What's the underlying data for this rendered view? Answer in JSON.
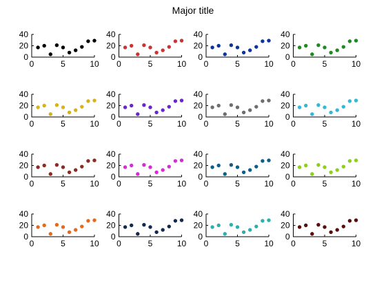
{
  "figure": {
    "title": "Major title"
  },
  "chart_data": [
    {
      "type": "scatter",
      "color": "#000000",
      "x": [
        1,
        2,
        3,
        4,
        5,
        6,
        7,
        8,
        9,
        10
      ],
      "y": [
        17,
        20,
        5,
        21,
        17,
        8,
        12,
        18,
        28,
        29
      ],
      "xlim": [
        0,
        10
      ],
      "ylim": [
        0,
        40
      ],
      "xticks": [
        "0",
        "5",
        "10"
      ],
      "yticks": [
        "0",
        "20",
        "40"
      ]
    },
    {
      "type": "scatter",
      "color": "#cc3333",
      "x": [
        1,
        2,
        3,
        4,
        5,
        6,
        7,
        8,
        9,
        10
      ],
      "y": [
        17,
        20,
        5,
        21,
        17,
        8,
        12,
        18,
        28,
        29
      ],
      "xlim": [
        0,
        10
      ],
      "ylim": [
        0,
        40
      ],
      "xticks": [
        "0",
        "5",
        "10"
      ],
      "yticks": [
        "0",
        "20",
        "40"
      ]
    },
    {
      "type": "scatter",
      "color": "#0b3599",
      "x": [
        1,
        2,
        3,
        4,
        5,
        6,
        7,
        8,
        9,
        10
      ],
      "y": [
        17,
        20,
        5,
        21,
        17,
        8,
        12,
        18,
        28,
        29
      ],
      "xlim": [
        0,
        10
      ],
      "ylim": [
        0,
        40
      ],
      "xticks": [
        "0",
        "5",
        "10"
      ],
      "yticks": [
        "0",
        "20",
        "40"
      ]
    },
    {
      "type": "scatter",
      "color": "#1f8a1f",
      "x": [
        1,
        2,
        3,
        4,
        5,
        6,
        7,
        8,
        9,
        10
      ],
      "y": [
        17,
        20,
        5,
        21,
        17,
        8,
        12,
        18,
        28,
        29
      ],
      "xlim": [
        0,
        10
      ],
      "ylim": [
        0,
        40
      ],
      "xticks": [
        "0",
        "5",
        "10"
      ],
      "yticks": [
        "0",
        "20",
        "40"
      ]
    },
    {
      "type": "scatter",
      "color": "#d6b21b",
      "x": [
        1,
        2,
        3,
        4,
        5,
        6,
        7,
        8,
        9,
        10
      ],
      "y": [
        17,
        20,
        5,
        21,
        17,
        8,
        12,
        18,
        28,
        29
      ],
      "xlim": [
        0,
        10
      ],
      "ylim": [
        0,
        40
      ],
      "xticks": [
        "0",
        "5",
        "10"
      ],
      "yticks": [
        "0",
        "20",
        "40"
      ]
    },
    {
      "type": "scatter",
      "color": "#6a26cc",
      "x": [
        1,
        2,
        3,
        4,
        5,
        6,
        7,
        8,
        9,
        10
      ],
      "y": [
        17,
        20,
        5,
        21,
        17,
        8,
        12,
        18,
        28,
        29
      ],
      "xlim": [
        0,
        10
      ],
      "ylim": [
        0,
        40
      ],
      "xticks": [
        "0",
        "5",
        "10"
      ],
      "yticks": [
        "0",
        "20",
        "40"
      ]
    },
    {
      "type": "scatter",
      "color": "#6e6e6e",
      "x": [
        1,
        2,
        3,
        4,
        5,
        6,
        7,
        8,
        9,
        10
      ],
      "y": [
        17,
        20,
        5,
        21,
        17,
        8,
        12,
        18,
        28,
        29
      ],
      "xlim": [
        0,
        10
      ],
      "ylim": [
        0,
        40
      ],
      "xticks": [
        "0",
        "5",
        "10"
      ],
      "yticks": [
        "0",
        "20",
        "40"
      ]
    },
    {
      "type": "scatter",
      "color": "#35b7d6",
      "x": [
        1,
        2,
        3,
        4,
        5,
        6,
        7,
        8,
        9,
        10
      ],
      "y": [
        17,
        20,
        5,
        21,
        17,
        8,
        12,
        18,
        28,
        29
      ],
      "xlim": [
        0,
        10
      ],
      "ylim": [
        0,
        40
      ],
      "xticks": [
        "0",
        "5",
        "10"
      ],
      "yticks": [
        "0",
        "20",
        "40"
      ]
    },
    {
      "type": "scatter",
      "color": "#8b2b23",
      "x": [
        1,
        2,
        3,
        4,
        5,
        6,
        7,
        8,
        9,
        10
      ],
      "y": [
        17,
        20,
        5,
        21,
        17,
        8,
        12,
        18,
        28,
        29
      ],
      "xlim": [
        0,
        10
      ],
      "ylim": [
        0,
        40
      ],
      "xticks": [
        "0",
        "5",
        "10"
      ],
      "yticks": [
        "0",
        "20",
        "40"
      ]
    },
    {
      "type": "scatter",
      "color": "#d42dd4",
      "x": [
        1,
        2,
        3,
        4,
        5,
        6,
        7,
        8,
        9,
        10
      ],
      "y": [
        17,
        20,
        5,
        21,
        17,
        8,
        12,
        18,
        28,
        29
      ],
      "xlim": [
        0,
        10
      ],
      "ylim": [
        0,
        40
      ],
      "xticks": [
        "0",
        "5",
        "10"
      ],
      "yticks": [
        "0",
        "20",
        "40"
      ]
    },
    {
      "type": "scatter",
      "color": "#0e5e8a",
      "x": [
        1,
        2,
        3,
        4,
        5,
        6,
        7,
        8,
        9,
        10
      ],
      "y": [
        17,
        20,
        5,
        21,
        17,
        8,
        12,
        18,
        28,
        29
      ],
      "xlim": [
        0,
        10
      ],
      "ylim": [
        0,
        40
      ],
      "xticks": [
        "0",
        "5",
        "10"
      ],
      "yticks": [
        "0",
        "20",
        "40"
      ]
    },
    {
      "type": "scatter",
      "color": "#8ccf1c",
      "x": [
        1,
        2,
        3,
        4,
        5,
        6,
        7,
        8,
        9,
        10
      ],
      "y": [
        17,
        20,
        5,
        21,
        17,
        8,
        12,
        18,
        28,
        29
      ],
      "xlim": [
        0,
        10
      ],
      "ylim": [
        0,
        40
      ],
      "xticks": [
        "0",
        "5",
        "10"
      ],
      "yticks": [
        "0",
        "20",
        "40"
      ]
    },
    {
      "type": "scatter",
      "color": "#e36a1c",
      "x": [
        1,
        2,
        3,
        4,
        5,
        6,
        7,
        8,
        9,
        10
      ],
      "y": [
        17,
        20,
        5,
        21,
        17,
        8,
        12,
        18,
        28,
        29
      ],
      "xlim": [
        0,
        10
      ],
      "ylim": [
        0,
        40
      ],
      "xticks": [
        "0",
        "5",
        "10"
      ],
      "yticks": [
        "0",
        "20",
        "40"
      ]
    },
    {
      "type": "scatter",
      "color": "#13294f",
      "x": [
        1,
        2,
        3,
        4,
        5,
        6,
        7,
        8,
        9,
        10
      ],
      "y": [
        17,
        20,
        5,
        21,
        17,
        8,
        12,
        18,
        28,
        29
      ],
      "xlim": [
        0,
        10
      ],
      "ylim": [
        0,
        40
      ],
      "xticks": [
        "0",
        "5",
        "10"
      ],
      "yticks": [
        "0",
        "20",
        "40"
      ]
    },
    {
      "type": "scatter",
      "color": "#2bb0ad",
      "x": [
        1,
        2,
        3,
        4,
        5,
        6,
        7,
        8,
        9,
        10
      ],
      "y": [
        17,
        20,
        5,
        21,
        17,
        8,
        12,
        18,
        28,
        29
      ],
      "xlim": [
        0,
        10
      ],
      "ylim": [
        0,
        40
      ],
      "xticks": [
        "0",
        "5",
        "10"
      ],
      "yticks": [
        "0",
        "20",
        "40"
      ]
    },
    {
      "type": "scatter",
      "color": "#5a0d0d",
      "x": [
        1,
        2,
        3,
        4,
        5,
        6,
        7,
        8,
        9,
        10
      ],
      "y": [
        17,
        20,
        5,
        21,
        17,
        8,
        12,
        18,
        28,
        29
      ],
      "xlim": [
        0,
        10
      ],
      "ylim": [
        0,
        40
      ],
      "xticks": [
        "0",
        "5",
        "10"
      ],
      "yticks": [
        "0",
        "20",
        "40"
      ]
    }
  ]
}
